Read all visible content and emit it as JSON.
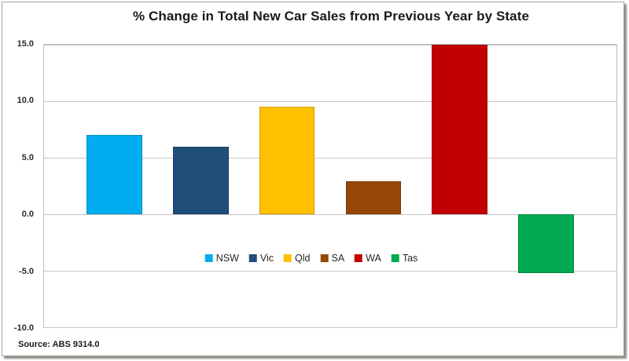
{
  "chart_data": {
    "type": "bar",
    "title": "% Change in Total New Car Sales from Previous Year by State",
    "categories": [
      "NSW",
      "Vic",
      "Qld",
      "SA",
      "WA",
      "Tas"
    ],
    "values": [
      7.0,
      6.0,
      9.5,
      2.9,
      15.0,
      -5.2
    ],
    "bar_colors": [
      "#00AEEF",
      "#1F4E79",
      "#FFC000",
      "#964708",
      "#C00000",
      "#00A84F"
    ],
    "xlabel": "",
    "ylabel": "",
    "ylim": [
      -10,
      15
    ],
    "yticks": [
      15.0,
      10.0,
      5.0,
      0.0,
      -5.0,
      -10.0
    ],
    "ytick_labels": [
      "15.0",
      "10.0",
      "5.0",
      "0.0",
      "-5.0",
      "-10.0"
    ],
    "grid": "horizontal",
    "gridline_color": "#c6c6c6",
    "legend_position": "inside-bottom-center",
    "source": "Source: ABS 9314.0"
  }
}
